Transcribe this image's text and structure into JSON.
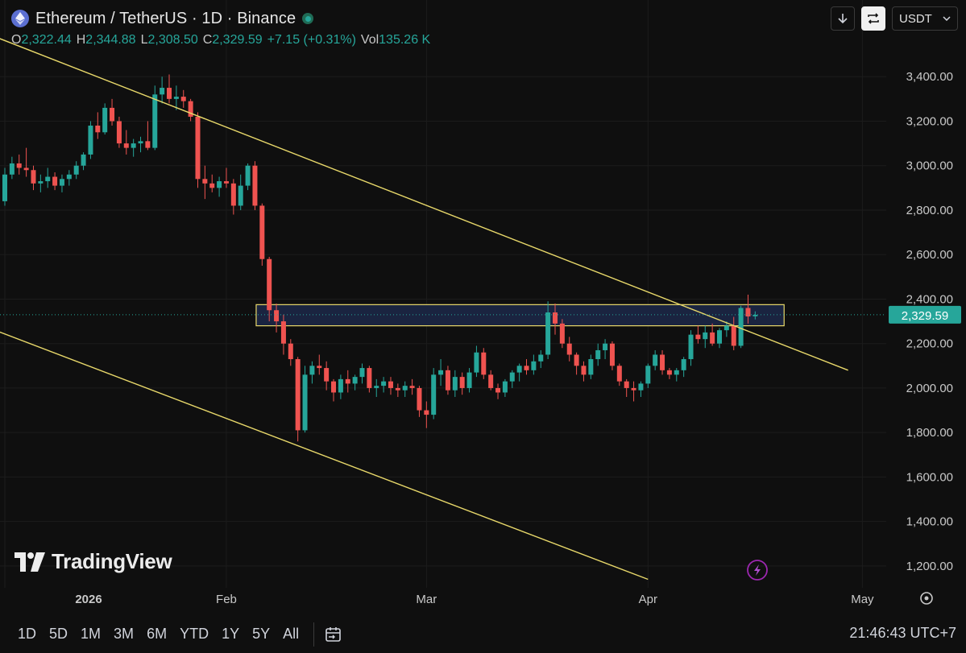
{
  "header": {
    "title": "Ethereum / TetherUS · 1D · Binance",
    "ohlc": [
      {
        "key": "O",
        "value": "2,322.44"
      },
      {
        "key": "H",
        "value": "2,344.88"
      },
      {
        "key": "L",
        "value": "2,308.50"
      },
      {
        "key": "C",
        "value": "2,329.59"
      }
    ],
    "change": "+7.15 (+0.31%)",
    "vol_label": "Vol",
    "vol_value": "135.26 K"
  },
  "toolbar": {
    "currency": "USDT"
  },
  "branding": {
    "name": "TradingView"
  },
  "bottom_bar": {
    "ranges": [
      "1D",
      "5D",
      "1M",
      "3M",
      "6M",
      "YTD",
      "1Y",
      "5Y",
      "All"
    ],
    "clock": "21:46:43 UTC+7"
  },
  "colors": {
    "up": "#26a69a",
    "down": "#ef5350",
    "trendline": "#e8d86a",
    "zone_fill": "#1a2440",
    "zone_border": "#e8d86a",
    "price_tag": "#26a69a"
  },
  "chart_data": {
    "type": "candlestick",
    "symbol": "Ethereum / TetherUS",
    "interval": "1D",
    "exchange": "Binance",
    "last_price": "2,329.59",
    "ylim": [
      1120,
      3600
    ],
    "y_ticks": [
      "1,200.00",
      "1,400.00",
      "1,600.00",
      "1,800.00",
      "2,000.00",
      "2,200.00",
      "2,400.00",
      "2,600.00",
      "2,800.00",
      "3,000.00",
      "3,200.00",
      "3,400.00"
    ],
    "y_tick_values": [
      1200,
      1400,
      1600,
      1800,
      2000,
      2200,
      2400,
      2600,
      2800,
      3000,
      3200,
      3400
    ],
    "x_ticks": [
      {
        "label": "2026",
        "day": 0,
        "bold": true
      },
      {
        "label": "Feb",
        "day": 31,
        "bold": false
      },
      {
        "label": "Mar",
        "day": 59,
        "bold": false
      },
      {
        "label": "Apr",
        "day": 90,
        "bold": false
      },
      {
        "label": "May",
        "day": 120,
        "bold": false
      }
    ],
    "candles": [
      [
        2840,
        2990,
        2820,
        2960
      ],
      [
        2960,
        3040,
        2940,
        3010
      ],
      [
        3010,
        3050,
        2960,
        2990
      ],
      [
        2990,
        3080,
        2950,
        2980
      ],
      [
        2980,
        3000,
        2890,
        2920
      ],
      [
        2920,
        2960,
        2880,
        2930
      ],
      [
        2930,
        2990,
        2900,
        2950
      ],
      [
        2950,
        2970,
        2890,
        2910
      ],
      [
        2910,
        2960,
        2880,
        2940
      ],
      [
        2940,
        2980,
        2910,
        2960
      ],
      [
        2960,
        3020,
        2940,
        3000
      ],
      [
        3000,
        3060,
        2980,
        3050
      ],
      [
        3050,
        3200,
        3030,
        3180
      ],
      [
        3180,
        3240,
        3120,
        3150
      ],
      [
        3150,
        3280,
        3140,
        3260
      ],
      [
        3260,
        3300,
        3180,
        3200
      ],
      [
        3200,
        3220,
        3080,
        3100
      ],
      [
        3100,
        3160,
        3050,
        3080
      ],
      [
        3080,
        3120,
        3040,
        3100
      ],
      [
        3100,
        3130,
        3060,
        3110
      ],
      [
        3110,
        3200,
        3070,
        3080
      ],
      [
        3080,
        3360,
        3070,
        3320
      ],
      [
        3320,
        3400,
        3280,
        3350
      ],
      [
        3350,
        3410,
        3280,
        3300
      ],
      [
        3300,
        3360,
        3250,
        3310
      ],
      [
        3310,
        3340,
        3260,
        3290
      ],
      [
        3290,
        3300,
        3200,
        3220
      ],
      [
        3220,
        3240,
        2900,
        2940
      ],
      [
        2940,
        3000,
        2850,
        2920
      ],
      [
        2920,
        2960,
        2880,
        2900
      ],
      [
        2900,
        2950,
        2860,
        2930
      ],
      [
        2930,
        2990,
        2900,
        2920
      ],
      [
        2920,
        2940,
        2780,
        2820
      ],
      [
        2820,
        2960,
        2800,
        2910
      ],
      [
        2910,
        3010,
        2890,
        3000
      ],
      [
        3000,
        3020,
        2800,
        2820
      ],
      [
        2820,
        2830,
        2550,
        2580
      ],
      [
        2580,
        2590,
        2300,
        2350
      ],
      [
        2350,
        2380,
        2250,
        2300
      ],
      [
        2300,
        2330,
        2150,
        2200
      ],
      [
        2200,
        2220,
        2100,
        2130
      ],
      [
        2130,
        2140,
        1760,
        1810
      ],
      [
        1810,
        2100,
        1800,
        2060
      ],
      [
        2060,
        2120,
        2020,
        2100
      ],
      [
        2100,
        2150,
        2060,
        2090
      ],
      [
        2090,
        2120,
        1990,
        2030
      ],
      [
        2030,
        2040,
        1940,
        1980
      ],
      [
        1980,
        2060,
        1950,
        2040
      ],
      [
        2040,
        2080,
        1980,
        2020
      ],
      [
        2020,
        2060,
        1990,
        2050
      ],
      [
        2050,
        2110,
        2020,
        2090
      ],
      [
        2090,
        2100,
        1980,
        2000
      ],
      [
        2000,
        2040,
        1960,
        2010
      ],
      [
        2010,
        2050,
        1980,
        2030
      ],
      [
        2030,
        2050,
        1970,
        2000
      ],
      [
        2000,
        2020,
        1960,
        1990
      ],
      [
        1990,
        2030,
        1960,
        2010
      ],
      [
        2010,
        2040,
        1970,
        2000
      ],
      [
        2000,
        2010,
        1870,
        1900
      ],
      [
        1900,
        1940,
        1820,
        1880
      ],
      [
        1880,
        2090,
        1860,
        2060
      ],
      [
        2060,
        2130,
        2010,
        2080
      ],
      [
        2080,
        2100,
        1970,
        1990
      ],
      [
        1990,
        2080,
        1960,
        2050
      ],
      [
        2050,
        2070,
        1970,
        2000
      ],
      [
        2000,
        2090,
        1980,
        2070
      ],
      [
        2070,
        2190,
        2050,
        2160
      ],
      [
        2160,
        2180,
        2040,
        2060
      ],
      [
        2060,
        2080,
        1990,
        2000
      ],
      [
        2000,
        2020,
        1950,
        1980
      ],
      [
        1980,
        2040,
        1960,
        2030
      ],
      [
        2030,
        2080,
        2000,
        2070
      ],
      [
        2070,
        2110,
        2030,
        2100
      ],
      [
        2100,
        2130,
        2060,
        2080
      ],
      [
        2080,
        2150,
        2060,
        2120
      ],
      [
        2120,
        2170,
        2090,
        2150
      ],
      [
        2150,
        2390,
        2130,
        2340
      ],
      [
        2340,
        2380,
        2240,
        2290
      ],
      [
        2290,
        2310,
        2180,
        2200
      ],
      [
        2200,
        2230,
        2120,
        2150
      ],
      [
        2150,
        2160,
        2060,
        2100
      ],
      [
        2100,
        2120,
        2030,
        2060
      ],
      [
        2060,
        2150,
        2040,
        2130
      ],
      [
        2130,
        2200,
        2100,
        2170
      ],
      [
        2170,
        2220,
        2130,
        2200
      ],
      [
        2200,
        2210,
        2080,
        2100
      ],
      [
        2100,
        2110,
        2010,
        2030
      ],
      [
        2030,
        2040,
        1960,
        2000
      ],
      [
        2000,
        2030,
        1940,
        1990
      ],
      [
        1990,
        2030,
        1960,
        2020
      ],
      [
        2020,
        2110,
        2000,
        2100
      ],
      [
        2100,
        2170,
        2080,
        2150
      ],
      [
        2150,
        2170,
        2060,
        2080
      ],
      [
        2080,
        2090,
        2040,
        2060
      ],
      [
        2060,
        2090,
        2030,
        2080
      ],
      [
        2080,
        2140,
        2050,
        2130
      ],
      [
        2130,
        2260,
        2100,
        2240
      ],
      [
        2240,
        2280,
        2200,
        2220
      ],
      [
        2220,
        2280,
        2180,
        2250
      ],
      [
        2250,
        2290,
        2190,
        2200
      ],
      [
        2200,
        2270,
        2180,
        2260
      ],
      [
        2260,
        2300,
        2230,
        2280
      ],
      [
        2280,
        2320,
        2170,
        2190
      ],
      [
        2190,
        2370,
        2180,
        2360
      ],
      [
        2360,
        2420,
        2290,
        2322
      ],
      [
        2322.44,
        2344.88,
        2308.5,
        2329.59
      ]
    ],
    "trendlines": [
      {
        "name": "upper-channel",
        "from": {
          "day": -3,
          "price": 3600
        },
        "to": {
          "day": 118,
          "price": 2080
        }
      },
      {
        "name": "lower-channel",
        "from": {
          "day": -3,
          "price": 2280
        },
        "to": {
          "day": 90,
          "price": 1140
        }
      }
    ],
    "zones": [
      {
        "name": "resistance-zone",
        "day_start": 31,
        "day_end": 106,
        "price_low": 2280,
        "price_high": 2375
      }
    ]
  }
}
